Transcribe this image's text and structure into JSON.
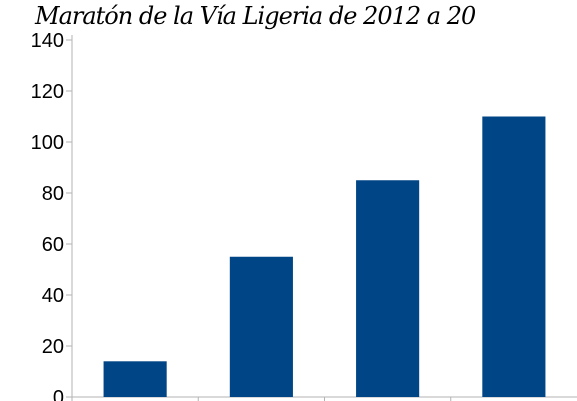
{
  "chart_data": {
    "type": "bar",
    "title": "Maratón de la Vía Ligeria de 2012 a 20",
    "categories": [
      "",
      "",
      "",
      ""
    ],
    "values": [
      14,
      55,
      85,
      110
    ],
    "ylim": [
      0,
      140
    ],
    "yticks": [
      0,
      20,
      40,
      60,
      80,
      100,
      120,
      140
    ],
    "grid": false,
    "legend": "none",
    "xlabel": "",
    "ylabel": "",
    "colors": {
      "bar": "#004586",
      "axis": "#b3b3b3",
      "text": "#000000",
      "background": "#ffffff"
    }
  }
}
